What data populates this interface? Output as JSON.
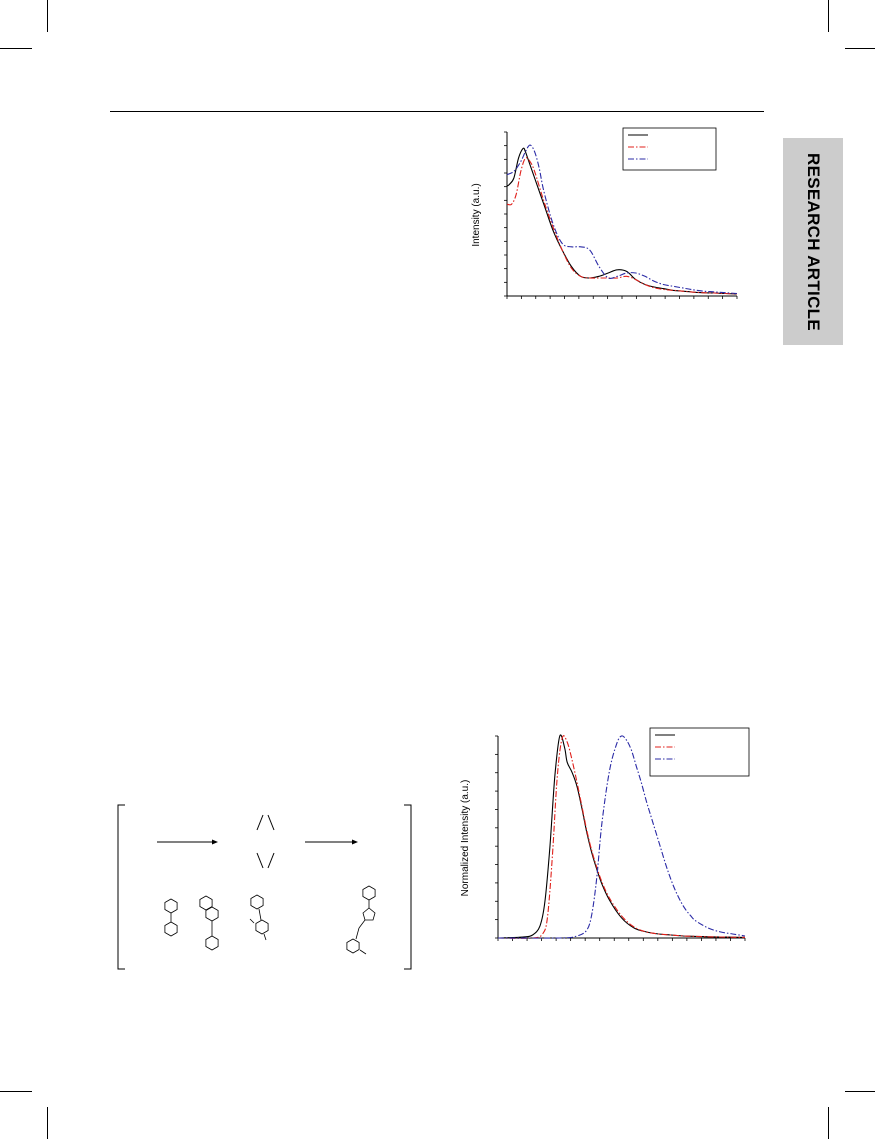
{
  "side_tab": {
    "label": "RESEARCH ARTICLE"
  },
  "colors": {
    "series1": "#000000",
    "series2": "#e0201b",
    "series3": "#2b2ba6",
    "tab": "#cccccc"
  },
  "chart_data": [
    {
      "type": "line",
      "title": "",
      "xlabel": "",
      "ylabel": "Intensity (a.u.)",
      "legend": "top-right",
      "xlim": [
        0,
        100
      ],
      "ylim": [
        0,
        100
      ],
      "series": [
        {
          "style": "solid",
          "color": "#000000",
          "x": [
            0,
            1,
            3,
            5,
            7,
            8,
            9,
            12,
            16,
            20,
            24,
            28,
            32,
            36,
            40,
            44,
            48,
            52,
            56,
            60,
            64,
            68,
            72,
            76,
            80,
            85,
            90,
            95,
            100
          ],
          "y": [
            67,
            68,
            72,
            84,
            90,
            88,
            84,
            72,
            56,
            40,
            28,
            18,
            12,
            11,
            12,
            14,
            16,
            15,
            10,
            7,
            5.5,
            4.5,
            3.5,
            3,
            2.5,
            2,
            1.8,
            1.5,
            1.3
          ]
        },
        {
          "style": "dashdot",
          "color": "#e0201b",
          "x": [
            0,
            2,
            4,
            6,
            8,
            10,
            12,
            16,
            20,
            24,
            28,
            32,
            36,
            40,
            44,
            48,
            52,
            56,
            60,
            64,
            68,
            72,
            76,
            80,
            85,
            90,
            95,
            100
          ],
          "y": [
            56,
            56,
            62,
            76,
            84,
            82,
            76,
            58,
            42,
            28,
            17,
            12,
            11,
            11,
            11,
            11,
            12,
            10,
            7,
            5,
            4,
            3.5,
            3,
            2.5,
            2,
            1.8,
            1.5,
            1.3
          ]
        },
        {
          "style": "dashdot",
          "color": "#2b2ba6",
          "x": [
            0,
            3,
            6,
            8,
            10,
            12,
            14,
            16,
            20,
            24,
            28,
            32,
            36,
            40,
            44,
            48,
            52,
            56,
            60,
            64,
            68,
            72,
            76,
            80,
            85,
            90,
            95,
            100
          ],
          "y": [
            74,
            76,
            82,
            88,
            92,
            88,
            78,
            64,
            44,
            32,
            30,
            30,
            28,
            18,
            11,
            12,
            14,
            14,
            12,
            9,
            7,
            6,
            5,
            4,
            3,
            2.5,
            2,
            1.5
          ]
        }
      ]
    },
    {
      "type": "line",
      "title": "",
      "xlabel": "",
      "ylabel": "Normalized Intensity (a.u.)",
      "legend": "top-right",
      "xlim": [
        0,
        100
      ],
      "ylim": [
        0,
        100
      ],
      "series": [
        {
          "style": "solid",
          "color": "#000000",
          "x": [
            0,
            10,
            14,
            17,
            19,
            21,
            23,
            25,
            27,
            28,
            30,
            32,
            34,
            36,
            38,
            40,
            42,
            45,
            50,
            55,
            60,
            65,
            70,
            75,
            80,
            85,
            90,
            95,
            100
          ],
          "y": [
            0,
            0.5,
            1.5,
            6,
            18,
            45,
            80,
            100,
            94,
            87,
            82,
            75,
            64,
            52,
            42,
            34,
            27,
            19,
            10,
            5,
            3,
            2,
            1.5,
            1,
            0.8,
            0.6,
            0.5,
            0.4,
            0.3
          ]
        },
        {
          "style": "dashdot",
          "color": "#e0201b",
          "x": [
            0,
            14,
            18,
            20,
            22,
            24,
            26,
            28,
            30,
            32,
            34,
            36,
            38,
            40,
            42,
            45,
            50,
            55,
            60,
            65,
            70,
            75,
            80,
            85,
            90,
            95,
            100
          ],
          "y": [
            0,
            0,
            2,
            10,
            40,
            80,
            99,
            97,
            88,
            77,
            65,
            53,
            43,
            35,
            28,
            20,
            11,
            5.5,
            3,
            2,
            1.5,
            1,
            0.8,
            0.6,
            0.5,
            0.4,
            0.3
          ]
        },
        {
          "style": "dashdot",
          "color": "#2b2ba6",
          "x": [
            0,
            25,
            32,
            36,
            38,
            40,
            42,
            45,
            48,
            50,
            52,
            54,
            56,
            58,
            60,
            62,
            64,
            66,
            68,
            70,
            72,
            74,
            76,
            78,
            80,
            85,
            90,
            95,
            100
          ],
          "y": [
            0,
            0,
            1,
            4,
            12,
            30,
            56,
            82,
            96,
            100,
            98,
            93,
            85,
            77,
            68,
            60,
            52,
            44,
            36,
            29,
            23,
            18,
            14,
            11,
            8.5,
            5,
            3,
            2,
            1
          ]
        }
      ]
    }
  ]
}
